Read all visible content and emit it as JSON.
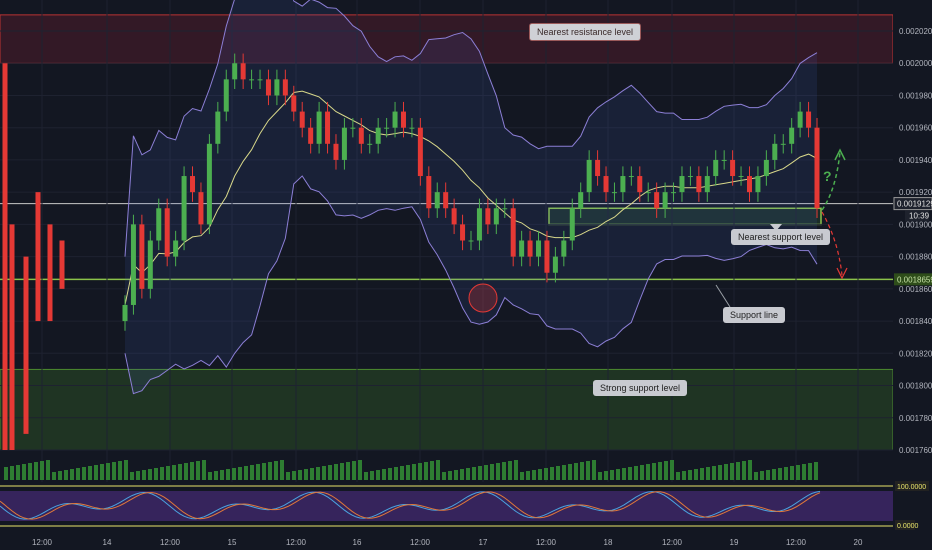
{
  "chart_data": {
    "type": "candlestick",
    "title": "",
    "y_axis": {
      "range": [
        0.00174,
        0.00205
      ],
      "ticks": [
        "0.0020200",
        "0.0020000",
        "0.0019800",
        "0.0019600",
        "0.0019400",
        "0.0019200",
        "0.0019000",
        "0.0018800",
        "0.0018600",
        "0.0018400",
        "0.0018200",
        "0.0018000",
        "0.0017800",
        "0.0017600"
      ]
    },
    "x_axis": {
      "ticks": [
        "12:00",
        "14",
        "12:00",
        "15",
        "12:00",
        "16",
        "12:00",
        "17",
        "12:00",
        "18",
        "12:00",
        "19",
        "12:00",
        "20"
      ]
    },
    "price_labels": {
      "current": "0.0019129",
      "countdown": "10:39",
      "support": "0.0018659"
    },
    "oscillator_labels": {
      "upper": "100.0000",
      "lower": "0.0000"
    },
    "close_series": [
      0.00185,
      0.0019,
      0.00186,
      0.00189,
      0.00191,
      0.00188,
      0.00189,
      0.00193,
      0.00192,
      0.0019,
      0.00195,
      0.00197,
      0.00199,
      0.002,
      0.00199,
      0.00199,
      0.00199,
      0.00198,
      0.00199,
      0.00198,
      0.00197,
      0.00196,
      0.00195,
      0.00197,
      0.00195,
      0.00194,
      0.00196,
      0.00196,
      0.00195,
      0.00195,
      0.00196,
      0.00196,
      0.00197,
      0.00196,
      0.00196,
      0.00193,
      0.00191,
      0.00192,
      0.00191,
      0.0019,
      0.00189,
      0.00189,
      0.00191,
      0.0019,
      0.00191,
      0.00191,
      0.00188,
      0.00189,
      0.00188,
      0.00189,
      0.00187,
      0.00188,
      0.00189,
      0.00191,
      0.00192,
      0.00194,
      0.00193,
      0.00192,
      0.00192,
      0.00193,
      0.00193,
      0.00192,
      0.00192,
      0.00191,
      0.00192,
      0.00192,
      0.00193,
      0.00193,
      0.00192,
      0.00193,
      0.00194,
      0.00194,
      0.00193,
      0.00193,
      0.00192,
      0.00193,
      0.00194,
      0.00195,
      0.00195,
      0.00196,
      0.00197,
      0.00196,
      0.00191
    ],
    "bands": {
      "nearest_resistance": [
        0.002,
        0.00203
      ],
      "nearest_support": [
        0.0019,
        0.00191
      ],
      "support_line": 0.0018659,
      "strong_support": [
        0.00176,
        0.00181
      ]
    }
  },
  "annotations": {
    "resistance": "Nearest resistance level",
    "nearest_support": "Nearest support level",
    "support_line": "Support line",
    "strong_support": "Strong support level",
    "question": "?"
  },
  "colors": {
    "background": "#131722",
    "up": "#4caf50",
    "down": "#e53935",
    "bollinger": "#8c7fd6",
    "ma": "#d8d88a",
    "support_line": "#8bc34a"
  }
}
